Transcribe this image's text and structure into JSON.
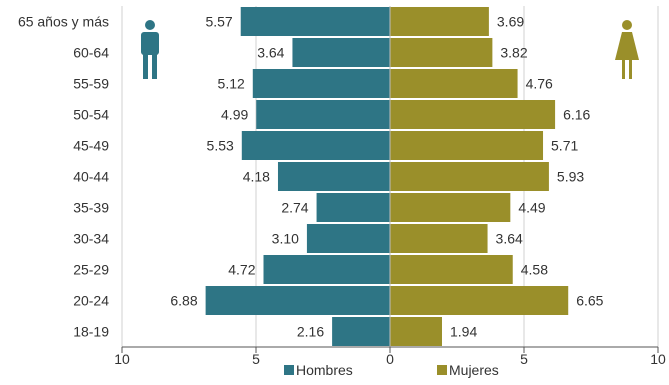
{
  "chart_data": {
    "type": "bar",
    "orientation": "horizontal",
    "subtype": "population-pyramid",
    "categories": [
      "65 años y más",
      "60-64",
      "55-59",
      "50-54",
      "45-49",
      "40-44",
      "35-39",
      "30-34",
      "25-29",
      "20-24",
      "18-19"
    ],
    "series": [
      {
        "name": "Hombres",
        "color": "#2e7585",
        "side": "left",
        "values": [
          5.57,
          3.64,
          5.12,
          4.99,
          5.53,
          4.18,
          2.74,
          3.1,
          4.72,
          6.88,
          2.16
        ],
        "labels": [
          "5.57",
          "3.64",
          "5.12",
          "4.99",
          "5.53",
          "4.18",
          "2.74",
          "3.10",
          "4.72",
          "6.88",
          "2.16"
        ]
      },
      {
        "name": "Mujeres",
        "color": "#9a8f2a",
        "side": "right",
        "values": [
          3.69,
          3.82,
          4.76,
          6.16,
          5.71,
          5.93,
          4.49,
          3.64,
          4.58,
          6.65,
          1.94
        ],
        "labels": [
          "3.69",
          "3.82",
          "4.76",
          "6.16",
          "5.71",
          "5.93",
          "4.49",
          "3.64",
          "4.58",
          "6.65",
          "1.94"
        ]
      }
    ],
    "xlim": [
      -10,
      10
    ],
    "x_ticks": [
      -10,
      -5,
      0,
      5,
      10
    ],
    "x_tick_labels": [
      "10",
      "5",
      "0",
      "5",
      "10"
    ],
    "title": "",
    "xlabel": "",
    "ylabel": "",
    "grid": true,
    "legend": {
      "position": "bottom-center",
      "entries": [
        "Hombres",
        "Mujeres"
      ]
    },
    "icons": {
      "male": {
        "name": "male-person-icon",
        "color": "#2e7585"
      },
      "female": {
        "name": "female-person-icon",
        "color": "#9a8f2a"
      }
    }
  }
}
